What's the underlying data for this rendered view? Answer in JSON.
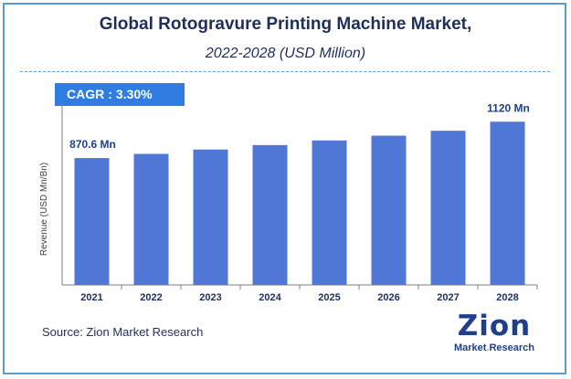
{
  "chart_data": {
    "type": "bar",
    "title": "Global Rotogravure Printing Machine Market,",
    "subtitle": "2022-2028 (USD Million)",
    "ylabel": "Revenue (USD Mn/Bn)",
    "xlabel": "",
    "categories": [
      "2021",
      "2022",
      "2023",
      "2024",
      "2025",
      "2026",
      "2027",
      "2028"
    ],
    "values": [
      870.6,
      899.3,
      929.0,
      959.6,
      991.3,
      1024.0,
      1057.8,
      1120
    ],
    "data_labels": [
      {
        "category": "2021",
        "text": "870.6 Mn"
      },
      {
        "category": "2028",
        "text": "1120 Mn"
      }
    ],
    "ylim": [
      0,
      1200
    ],
    "grid": false,
    "bar_color": "#4f78d6"
  },
  "cagr": {
    "label": "CAGR",
    "separator": ":",
    "value": "3.30%"
  },
  "source": "Source: Zion Market Research",
  "logo": {
    "main": "Zion",
    "sub_left": "Market",
    "sub_dot": ".",
    "sub_right": "Research"
  },
  "colors": {
    "border": "#5b9bd5",
    "title": "#1f2f5a",
    "cagr_bg": "#2f7de1",
    "axis": "#7f7f7f"
  }
}
